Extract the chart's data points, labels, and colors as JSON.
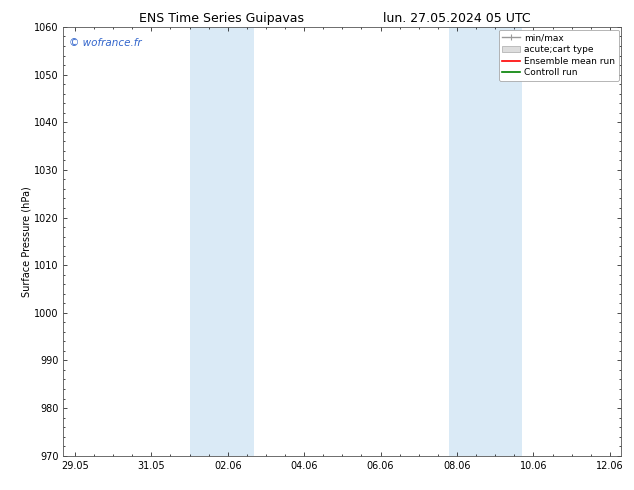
{
  "title_left": "ENS Time Series Guipavas",
  "title_right": "lun. 27.05.2024 05 UTC",
  "ylabel": "Surface Pressure (hPa)",
  "ylim": [
    970,
    1060
  ],
  "yticks": [
    970,
    980,
    990,
    1000,
    1010,
    1020,
    1030,
    1040,
    1050,
    1060
  ],
  "xlabel_ticks": [
    "29.05",
    "31.05",
    "02.06",
    "04.06",
    "06.06",
    "08.06",
    "10.06",
    "12.06"
  ],
  "xtick_positions": [
    0,
    2,
    4,
    6,
    8,
    10,
    12,
    14
  ],
  "xlim": [
    -0.3,
    14.3
  ],
  "watermark": "© wofrance.fr",
  "shaded_regions": [
    {
      "xstart": 3.0,
      "xend": 4.7
    },
    {
      "xstart": 9.8,
      "xend": 11.7
    }
  ],
  "shaded_color": "#daeaf6",
  "background_color": "#ffffff",
  "grid_color": "#cccccc",
  "title_fontsize": 9,
  "ylabel_fontsize": 7,
  "tick_labelsize": 7,
  "legend_fontsize": 6.5,
  "watermark_fontsize": 7.5,
  "watermark_color": "#3366cc"
}
